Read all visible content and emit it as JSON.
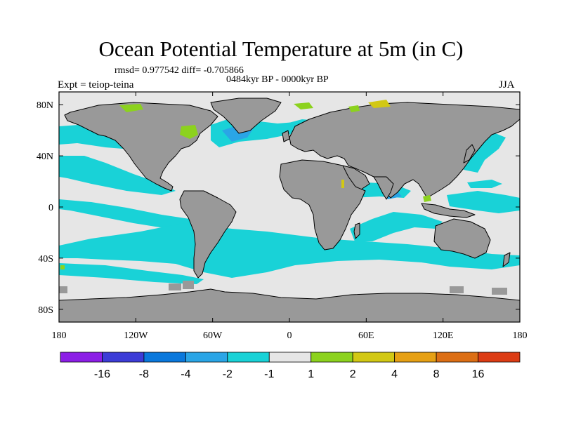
{
  "title": "Ocean Potential Temperature at 5m (in C)",
  "stats": "rmsd= 0.977542 diff= -0.705866",
  "period": "0484kyr BP - 0000kyr BP",
  "experiment": "Expt = teiop-teina",
  "season": "JJA",
  "colors": {
    "land": "#999999",
    "ocean_neutral": "#e6e6e6",
    "cyan": "#19d2d7",
    "blue_mid": "#2aa5e6",
    "blue": "#0a78dc",
    "green": "#8cd21e",
    "yellow": "#d2c814",
    "red": "#dc3c14"
  },
  "chart_data": {
    "type": "map",
    "projection": "cylindrical-equidistant",
    "lon_range": [
      -180,
      180
    ],
    "lat_range": [
      -90,
      90
    ],
    "x_ticks": [
      {
        "value": -180,
        "label": "180"
      },
      {
        "value": -120,
        "label": "120W"
      },
      {
        "value": -60,
        "label": "60W"
      },
      {
        "value": 0,
        "label": "0"
      },
      {
        "value": 60,
        "label": "60E"
      },
      {
        "value": 120,
        "label": "120E"
      },
      {
        "value": 180,
        "label": "180"
      }
    ],
    "y_ticks": [
      {
        "value": 80,
        "label": "80N"
      },
      {
        "value": 40,
        "label": "40N"
      },
      {
        "value": 0,
        "label": "0"
      },
      {
        "value": -40,
        "label": "40S"
      },
      {
        "value": -80,
        "label": "80S"
      }
    ],
    "colorbar": {
      "colors": [
        "#8c1ee6",
        "#3c3cd7",
        "#0a78dc",
        "#2aa5e6",
        "#19d2d7",
        "#e6e6e6",
        "#8cd21e",
        "#d2c814",
        "#e6a014",
        "#dc6e14",
        "#dc3c14"
      ],
      "labels": [
        "-16",
        "-8",
        "-4",
        "-2",
        "-1",
        "1",
        "2",
        "4",
        "8",
        "16"
      ]
    }
  }
}
